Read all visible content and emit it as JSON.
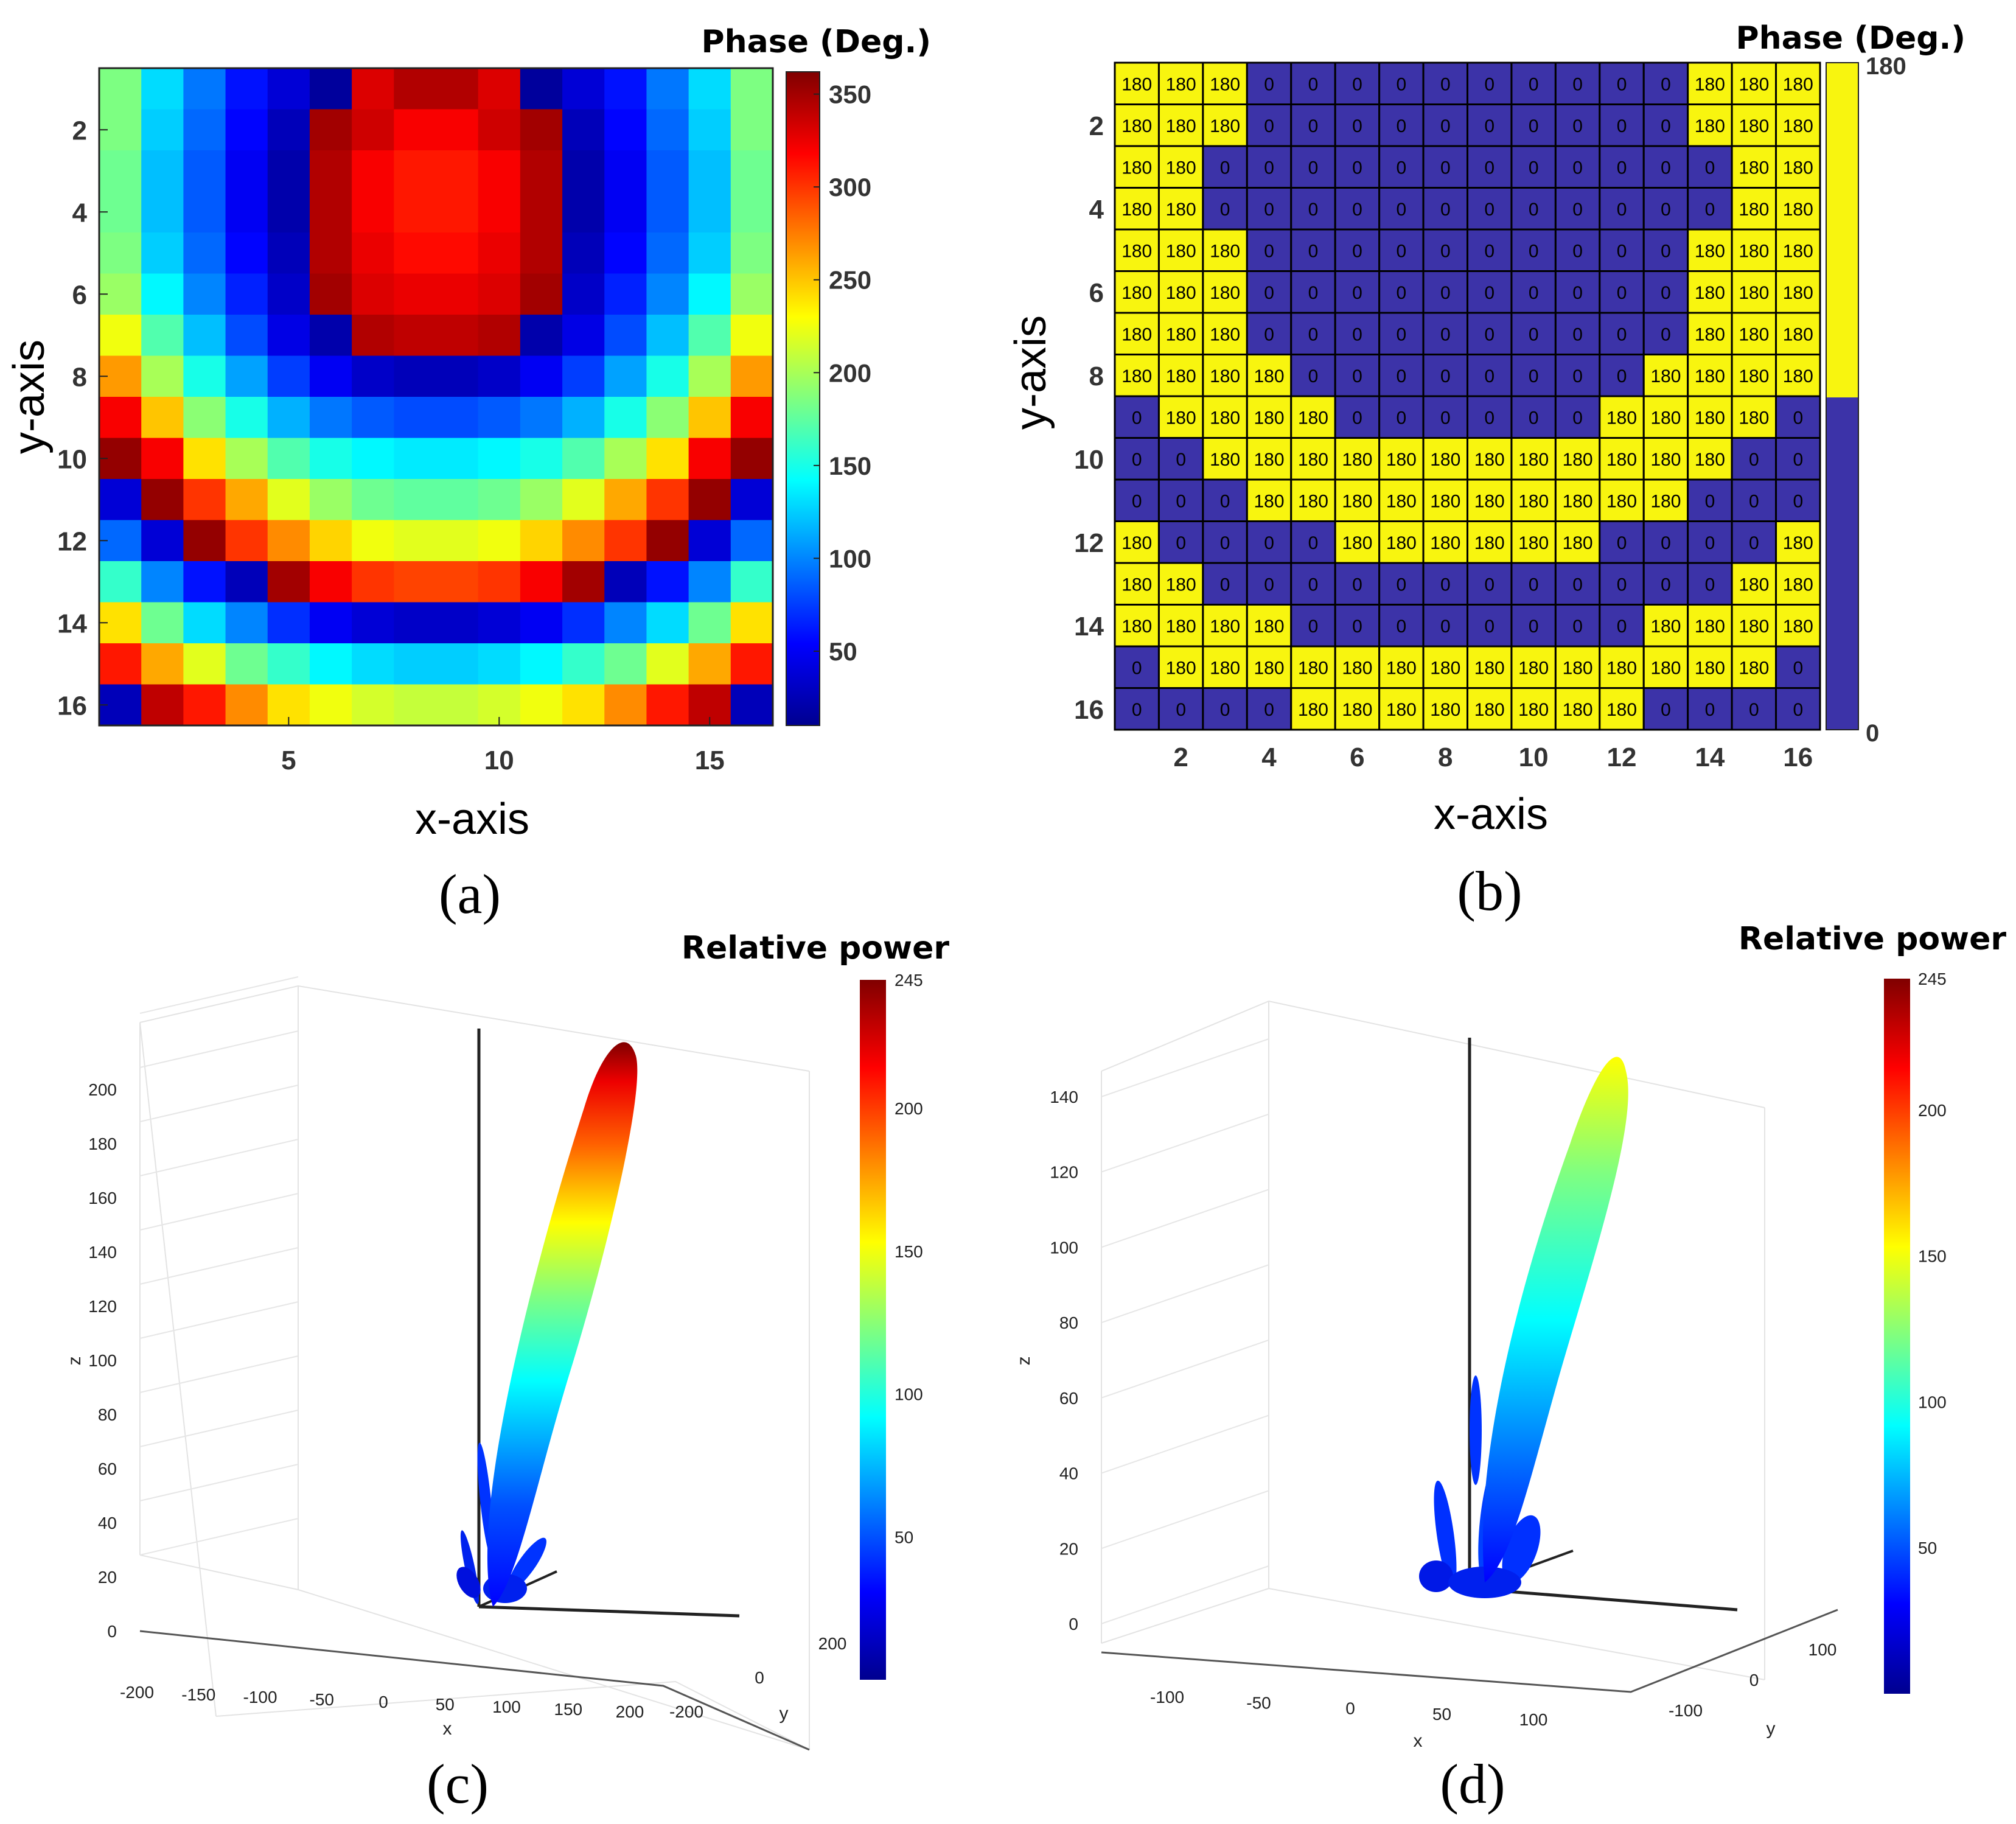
{
  "chart_data": [
    {
      "type": "heatmap",
      "caption": "(a)",
      "colorbar_title": "Phase (Deg.)",
      "xlabel": "x-axis",
      "ylabel": "y-axis",
      "xticks": [
        "5",
        "10",
        "15"
      ],
      "xtick_values": [
        5,
        10,
        15
      ],
      "yticks": [
        "2",
        "4",
        "6",
        "8",
        "10",
        "12",
        "14",
        "16"
      ],
      "ytick_values": [
        2,
        4,
        6,
        8,
        10,
        12,
        14,
        16
      ],
      "colorbar_ticks": [
        "50",
        "100",
        "150",
        "200",
        "250",
        "300",
        "350"
      ],
      "colorbar_tick_values": [
        50,
        100,
        150,
        200,
        250,
        300,
        350
      ],
      "clim": [
        10,
        362
      ],
      "colormap": "jet",
      "grid": [
        [
          185,
          130,
          95,
          60,
          40,
          20,
          330,
          345,
          345,
          330,
          20,
          40,
          60,
          95,
          130,
          185
        ],
        [
          185,
          125,
          90,
          55,
          30,
          350,
          335,
          320,
          320,
          335,
          350,
          30,
          55,
          90,
          125,
          185
        ],
        [
          180,
          120,
          85,
          50,
          25,
          345,
          320,
          310,
          310,
          320,
          345,
          25,
          50,
          85,
          120,
          180
        ],
        [
          180,
          120,
          85,
          50,
          25,
          345,
          320,
          310,
          310,
          320,
          345,
          25,
          50,
          85,
          120,
          180
        ],
        [
          185,
          125,
          90,
          55,
          30,
          345,
          325,
          315,
          315,
          325,
          345,
          30,
          55,
          90,
          125,
          185
        ],
        [
          195,
          140,
          100,
          65,
          35,
          350,
          330,
          325,
          325,
          330,
          350,
          35,
          65,
          100,
          140,
          195
        ],
        [
          225,
          170,
          120,
          80,
          45,
          25,
          345,
          340,
          340,
          345,
          25,
          45,
          80,
          120,
          170,
          225
        ],
        [
          265,
          200,
          150,
          110,
          75,
          50,
          35,
          30,
          30,
          35,
          50,
          75,
          110,
          150,
          200,
          265
        ],
        [
          320,
          250,
          190,
          150,
          115,
          95,
          85,
          80,
          80,
          85,
          95,
          115,
          150,
          190,
          250,
          320
        ],
        [
          355,
          320,
          240,
          200,
          170,
          150,
          140,
          135,
          135,
          140,
          150,
          170,
          200,
          240,
          320,
          355
        ],
        [
          40,
          355,
          300,
          260,
          220,
          195,
          180,
          175,
          175,
          180,
          195,
          220,
          260,
          300,
          355,
          40
        ],
        [
          90,
          40,
          355,
          300,
          270,
          245,
          225,
          220,
          220,
          225,
          245,
          270,
          300,
          355,
          40,
          90
        ],
        [
          160,
          100,
          60,
          30,
          350,
          320,
          300,
          295,
          295,
          300,
          320,
          350,
          30,
          60,
          100,
          160
        ],
        [
          240,
          180,
          130,
          100,
          70,
          50,
          40,
          35,
          35,
          40,
          50,
          70,
          100,
          130,
          180,
          240
        ],
        [
          310,
          260,
          220,
          180,
          160,
          140,
          130,
          125,
          125,
          130,
          140,
          160,
          180,
          220,
          260,
          310
        ],
        [
          30,
          340,
          310,
          270,
          240,
          225,
          215,
          210,
          210,
          215,
          225,
          240,
          270,
          310,
          340,
          30
        ]
      ]
    },
    {
      "type": "heatmap",
      "caption": "(b)",
      "colorbar_title": "Phase (Deg.)",
      "xlabel": "x-axis",
      "ylabel": "y-axis",
      "xticks": [
        "2",
        "4",
        "6",
        "8",
        "10",
        "12",
        "14",
        "16"
      ],
      "xtick_values": [
        2,
        4,
        6,
        8,
        10,
        12,
        14,
        16
      ],
      "yticks": [
        "2",
        "4",
        "6",
        "8",
        "10",
        "12",
        "14",
        "16"
      ],
      "ytick_values": [
        2,
        4,
        6,
        8,
        10,
        12,
        14,
        16
      ],
      "colorbar_ticks": [
        "0",
        "180"
      ],
      "colorbar_tick_values": [
        0,
        180
      ],
      "colors": {
        "180": "#f8f50f",
        "0": "#3c33a8"
      },
      "grid": [
        [
          "180",
          "180",
          "180",
          "0",
          "0",
          "0",
          "0",
          "0",
          "0",
          "0",
          "0",
          "0",
          "0",
          "180",
          "180",
          "180"
        ],
        [
          "180",
          "180",
          "180",
          "0",
          "0",
          "0",
          "0",
          "0",
          "0",
          "0",
          "0",
          "0",
          "0",
          "180",
          "180",
          "180"
        ],
        [
          "180",
          "180",
          "0",
          "0",
          "0",
          "0",
          "0",
          "0",
          "0",
          "0",
          "0",
          "0",
          "0",
          "0",
          "180",
          "180"
        ],
        [
          "180",
          "180",
          "0",
          "0",
          "0",
          "0",
          "0",
          "0",
          "0",
          "0",
          "0",
          "0",
          "0",
          "0",
          "180",
          "180"
        ],
        [
          "180",
          "180",
          "180",
          "0",
          "0",
          "0",
          "0",
          "0",
          "0",
          "0",
          "0",
          "0",
          "0",
          "180",
          "180",
          "180"
        ],
        [
          "180",
          "180",
          "180",
          "0",
          "0",
          "0",
          "0",
          "0",
          "0",
          "0",
          "0",
          "0",
          "0",
          "180",
          "180",
          "180"
        ],
        [
          "180",
          "180",
          "180",
          "0",
          "0",
          "0",
          "0",
          "0",
          "0",
          "0",
          "0",
          "0",
          "0",
          "180",
          "180",
          "180"
        ],
        [
          "180",
          "180",
          "180",
          "180",
          "0",
          "0",
          "0",
          "0",
          "0",
          "0",
          "0",
          "0",
          "180",
          "180",
          "180",
          "180"
        ],
        [
          "0",
          "180",
          "180",
          "180",
          "180",
          "0",
          "0",
          "0",
          "0",
          "0",
          "0",
          "180",
          "180",
          "180",
          "180",
          "0"
        ],
        [
          "0",
          "0",
          "180",
          "180",
          "180",
          "180",
          "180",
          "180",
          "180",
          "180",
          "180",
          "180",
          "180",
          "180",
          "0",
          "0"
        ],
        [
          "0",
          "0",
          "0",
          "180",
          "180",
          "180",
          "180",
          "180",
          "180",
          "180",
          "180",
          "180",
          "180",
          "0",
          "0",
          "0"
        ],
        [
          "180",
          "0",
          "0",
          "0",
          "0",
          "180",
          "180",
          "180",
          "180",
          "180",
          "180",
          "0",
          "0",
          "0",
          "0",
          "180"
        ],
        [
          "180",
          "180",
          "0",
          "0",
          "0",
          "0",
          "0",
          "0",
          "0",
          "0",
          "0",
          "0",
          "0",
          "0",
          "180",
          "180"
        ],
        [
          "180",
          "180",
          "180",
          "180",
          "0",
          "0",
          "0",
          "0",
          "0",
          "0",
          "0",
          "0",
          "180",
          "180",
          "180",
          "180"
        ],
        [
          "0",
          "180",
          "180",
          "180",
          "180",
          "180",
          "180",
          "180",
          "180",
          "180",
          "180",
          "180",
          "180",
          "180",
          "180",
          "0"
        ],
        [
          "0",
          "0",
          "0",
          "0",
          "180",
          "180",
          "180",
          "180",
          "180",
          "180",
          "180",
          "180",
          "0",
          "0",
          "0",
          "0"
        ]
      ]
    },
    {
      "type": "surface3d",
      "caption": "(c)",
      "colorbar_title": "Relative power",
      "colorbar_ticks": [
        "50",
        "100",
        "150",
        "200",
        "245"
      ],
      "colorbar_tick_values": [
        50,
        100,
        150,
        200,
        245
      ],
      "clim": [
        0,
        245
      ],
      "zlabel": "z",
      "xlabel": "x",
      "ylabel": "y",
      "zticks": [
        "0",
        "20",
        "40",
        "60",
        "80",
        "100",
        "120",
        "140",
        "160",
        "180",
        "200"
      ],
      "xticks": [
        "-200",
        "-150",
        "-100",
        "-50",
        "0",
        "50",
        "100",
        "150",
        "200"
      ],
      "yticks": [
        "-200",
        "0",
        "200"
      ],
      "main_lobe_peak": 245
    },
    {
      "type": "surface3d",
      "caption": "(d)",
      "colorbar_title": "Relative power",
      "colorbar_ticks": [
        "50",
        "100",
        "150",
        "200",
        "245"
      ],
      "colorbar_tick_values": [
        50,
        100,
        150,
        200,
        245
      ],
      "clim": [
        0,
        245
      ],
      "zlabel": "z",
      "xlabel": "x",
      "ylabel": "y",
      "zticks": [
        "0",
        "20",
        "40",
        "60",
        "80",
        "100",
        "120",
        "140"
      ],
      "xticks": [
        "-100",
        "-50",
        "0",
        "50",
        "100"
      ],
      "yticks": [
        "-100",
        "0",
        "100"
      ],
      "main_lobe_peak": 150
    }
  ]
}
